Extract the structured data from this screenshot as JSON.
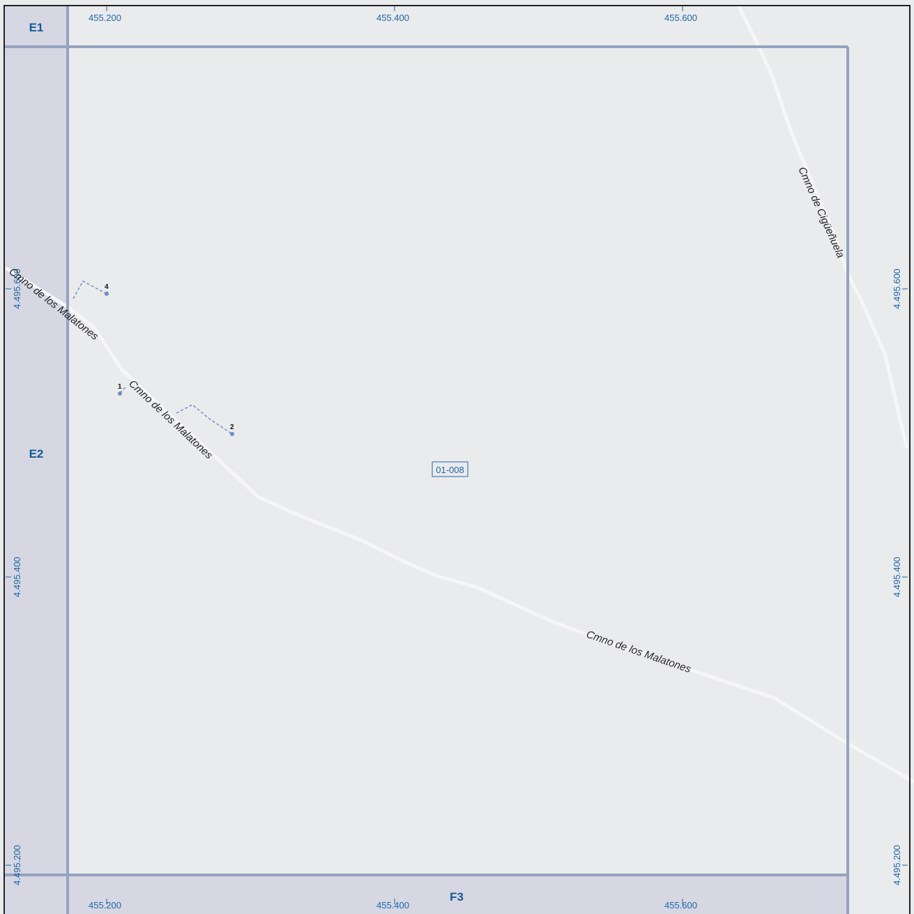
{
  "map": {
    "sheet_id": "01-008",
    "adjacent_sheets": {
      "top_left": "E1",
      "left": "E2",
      "bottom": "F3"
    },
    "x_ticks": [
      "455.200",
      "455.400",
      "455.600"
    ],
    "y_ticks": [
      "4.495.600",
      "4.495.400",
      "4.495.200"
    ],
    "roads": [
      {
        "name": "Cmno de los Malatones",
        "label": "Cmno de los Malatones"
      },
      {
        "name": "Cmno de los Malatones",
        "label": "Cmno de los Malatones"
      },
      {
        "name": "Cmno de los Malatones",
        "label": "Cmno de los Malatones"
      },
      {
        "name": "Cmno de Cigüeñuela",
        "label": "Cmno de Cigüeñuela"
      }
    ],
    "points": [
      "1",
      "2",
      "4"
    ],
    "colors": {
      "background": "#eaebed",
      "adjacent_sheet_fill": "#d6d7e2",
      "sheet_border": "#95a3c1",
      "road": "#f6f6f7",
      "label_blue": "#1d66a8",
      "sheet_label": "#155a95",
      "frame": "#222222",
      "dashed_line": "#6e8ec4"
    }
  }
}
